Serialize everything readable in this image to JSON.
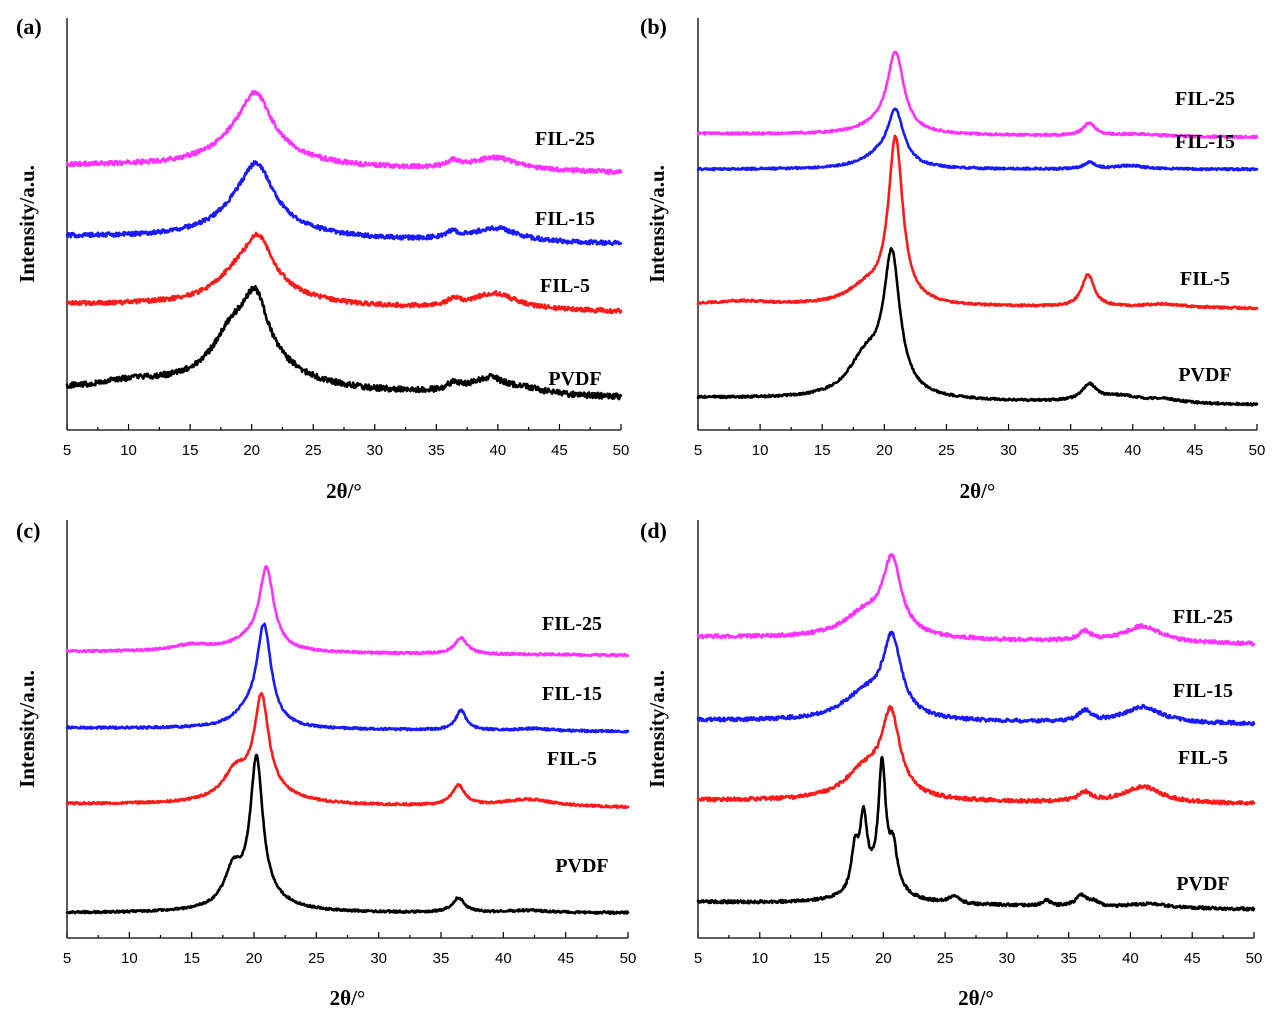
{
  "colors": {
    "FIL-25": "#ff33ff",
    "FIL-15": "#1a1aff",
    "FIL-5": "#ff1a1a",
    "PVDF": "#000000"
  },
  "chart_data": [
    {
      "type": "line",
      "panel": "(a)",
      "xlabel": "2θ/°",
      "ylabel": "Intensity/a.u.",
      "xlim": [
        5,
        50
      ],
      "xticks": [
        "5",
        "10",
        "15",
        "20",
        "25",
        "30",
        "35",
        "40",
        "45",
        "50"
      ],
      "ylim": [
        0,
        100
      ],
      "grid": false,
      "series": [
        {
          "name": "FIL-25",
          "baseline_start": 67,
          "baseline_end": 65,
          "noise": 0.6,
          "peaks": [
            [
              19.4,
              5,
              2.2
            ],
            [
              20.4,
              12,
              1.4
            ],
            [
              20.4,
              5,
              4.0
            ],
            [
              36.4,
              1.8,
              0.6
            ],
            [
              39.8,
              3.5,
              2.2
            ]
          ]
        },
        {
          "name": "FIL-15",
          "baseline_start": 47,
          "baseline_end": 45,
          "noise": 0.6,
          "peaks": [
            [
              19.4,
              5.5,
              2.2
            ],
            [
              20.5,
              12,
              1.4
            ],
            [
              20.5,
              5,
              4.0
            ],
            [
              36.3,
              1.8,
              0.6
            ],
            [
              39.8,
              3.8,
              2.2
            ]
          ]
        },
        {
          "name": "FIL-5",
          "baseline_start": 28,
          "baseline_end": 26,
          "noise": 0.6,
          "peaks": [
            [
              19.0,
              5.5,
              2.0
            ],
            [
              20.6,
              12,
              1.3
            ],
            [
              20.6,
              5,
              4.0
            ],
            [
              36.4,
              1.8,
              0.6
            ],
            [
              39.7,
              4.5,
              2.2
            ]
          ]
        },
        {
          "name": "PVDF",
          "baseline_start": 4,
          "baseline_end": 2,
          "noise": 0.8,
          "peaks": [
            [
              10.3,
              2.0,
              3.5
            ],
            [
              18.3,
              9,
              1.8
            ],
            [
              20.3,
              16,
              1.2
            ],
            [
              20.0,
              9,
              4.0
            ],
            [
              36.4,
              2.0,
              0.7
            ],
            [
              39.3,
              4.5,
              1.8
            ],
            [
              42.5,
              1.3,
              1.5
            ]
          ]
        }
      ],
      "legend_labels": [
        {
          "text": "FIL-25",
          "series": "FIL-25"
        },
        {
          "text": "FIL-15",
          "series": "FIL-15"
        },
        {
          "text": "FIL-5",
          "series": "FIL-5"
        },
        {
          "text": "PVDF",
          "series": "PVDF"
        }
      ]
    },
    {
      "type": "line",
      "panel": "(b)",
      "xlabel": "2θ/°",
      "ylabel": "Intensity/a.u.",
      "xlim": [
        5,
        50
      ],
      "xticks": [
        "5",
        "10",
        "15",
        "20",
        "25",
        "30",
        "35",
        "40",
        "45",
        "50"
      ],
      "ylim": [
        0,
        100
      ],
      "grid": false,
      "series": [
        {
          "name": "FIL-25",
          "baseline_start": 76,
          "baseline_end": 75,
          "noise": 0.3,
          "peaks": [
            [
              19.5,
              2.0,
              2.0
            ],
            [
              20.9,
              22,
              0.8
            ],
            [
              36.5,
              3.5,
              0.6
            ],
            [
              40.5,
              0.6,
              2.0
            ]
          ]
        },
        {
          "name": "FIL-15",
          "baseline_start": 66,
          "baseline_end": 66,
          "noise": 0.3,
          "peaks": [
            [
              19.5,
              3.0,
              1.8
            ],
            [
              20.9,
              15,
              0.8
            ],
            [
              36.5,
              1.8,
              0.5
            ],
            [
              39.7,
              1.0,
              1.5
            ]
          ]
        },
        {
          "name": "FIL-5",
          "baseline_start": 28,
          "baseline_end": 27,
          "noise": 0.3,
          "peaks": [
            [
              8.5,
              1.0,
              3.0
            ],
            [
              18.5,
              4.5,
              1.8
            ],
            [
              20.9,
              46,
              0.7
            ],
            [
              36.4,
              9,
              0.6
            ],
            [
              42.5,
              1.0,
              2.0
            ]
          ]
        },
        {
          "name": "PVDF",
          "baseline_start": 2,
          "baseline_end": 0,
          "noise": 0.3,
          "peaks": [
            [
              18.5,
              11,
              1.7
            ],
            [
              20.6,
              38,
              0.8
            ],
            [
              36.5,
              4.5,
              0.7
            ],
            [
              39.0,
              1.8,
              2.0
            ],
            [
              42.5,
              1.0,
              1.5
            ]
          ]
        }
      ],
      "legend_labels": [
        {
          "text": "FIL-25",
          "series": "FIL-25"
        },
        {
          "text": "FIL-15",
          "series": "FIL-15"
        },
        {
          "text": "FIL-5",
          "series": "FIL-5"
        },
        {
          "text": "PVDF",
          "series": "PVDF"
        }
      ]
    },
    {
      "type": "line",
      "panel": "(c)",
      "xlabel": "2θ/°",
      "ylabel": "Intensity/a.u.",
      "xlim": [
        5,
        50
      ],
      "xticks": [
        "5",
        "10",
        "15",
        "20",
        "25",
        "30",
        "35",
        "40",
        "45",
        "50"
      ],
      "ylim": [
        0,
        100
      ],
      "grid": false,
      "series": [
        {
          "name": "FIL-25",
          "baseline_start": 72,
          "baseline_end": 71,
          "noise": 0.3,
          "peaks": [
            [
              15.0,
              1.8,
              2.0
            ],
            [
              19.5,
              2.5,
              1.8
            ],
            [
              21.0,
              22,
              0.7
            ],
            [
              36.6,
              4.5,
              0.6
            ]
          ]
        },
        {
          "name": "FIL-15",
          "baseline_start": 51,
          "baseline_end": 50,
          "noise": 0.3,
          "peaks": [
            [
              19.5,
              3.5,
              1.5
            ],
            [
              20.8,
              27,
              0.7
            ],
            [
              36.6,
              5.5,
              0.5
            ],
            [
              42.5,
              0.6,
              1.5
            ]
          ]
        },
        {
          "name": "FIL-5",
          "baseline_start": 30,
          "baseline_end": 29,
          "noise": 0.3,
          "peaks": [
            [
              18.5,
              7,
              1.2
            ],
            [
              20.6,
              26,
              0.7
            ],
            [
              20.6,
              3,
              3.0
            ],
            [
              36.4,
              5.5,
              0.6
            ],
            [
              42.0,
              2.0,
              2.5
            ]
          ]
        },
        {
          "name": "PVDF",
          "baseline_start": 0,
          "baseline_end": 0,
          "noise": 0.3,
          "peaks": [
            [
              18.3,
              9,
              0.8
            ],
            [
              20.2,
              38,
              0.6
            ],
            [
              20.2,
              4,
              2.5
            ],
            [
              36.4,
              4,
              0.6
            ],
            [
              42.0,
              0.6,
              2.0
            ]
          ]
        }
      ],
      "legend_labels": [
        {
          "text": "FIL-25",
          "series": "FIL-25"
        },
        {
          "text": "FIL-15",
          "series": "FIL-15"
        },
        {
          "text": "FIL-5",
          "series": "FIL-5"
        },
        {
          "text": "PVDF",
          "series": "PVDF"
        }
      ]
    },
    {
      "type": "line",
      "panel": "(d)",
      "xlabel": "2θ/°",
      "ylabel": "Intensity/a.u.",
      "xlim": [
        5,
        50
      ],
      "xticks": [
        "5",
        "10",
        "15",
        "20",
        "25",
        "30",
        "35",
        "40",
        "45",
        "50"
      ],
      "ylim": [
        0,
        100
      ],
      "grid": false,
      "series": [
        {
          "name": "FIL-25",
          "baseline_start": 76,
          "baseline_end": 74,
          "noise": 0.5,
          "peaks": [
            [
              18.5,
              6.5,
              2.2
            ],
            [
              20.7,
              20,
              0.9
            ],
            [
              36.3,
              2.5,
              0.6
            ],
            [
              41.0,
              4.5,
              1.8
            ]
          ]
        },
        {
          "name": "FIL-15",
          "baseline_start": 53,
          "baseline_end": 52,
          "noise": 0.5,
          "peaks": [
            [
              18.5,
              7,
              2.2
            ],
            [
              20.7,
              21,
              0.9
            ],
            [
              36.3,
              3,
              0.6
            ],
            [
              41.0,
              4.5,
              1.8
            ]
          ]
        },
        {
          "name": "FIL-5",
          "baseline_start": 31,
          "baseline_end": 30,
          "noise": 0.5,
          "peaks": [
            [
              18.5,
              8,
              2.0
            ],
            [
              20.6,
              22,
              0.9
            ],
            [
              36.3,
              2.5,
              0.6
            ],
            [
              41.0,
              4.5,
              1.8
            ]
          ]
        },
        {
          "name": "PVDF",
          "baseline_start": 3,
          "baseline_end": 1,
          "noise": 0.4,
          "peaks": [
            [
              17.7,
              11,
              0.35
            ],
            [
              18.4,
              19,
              0.35
            ],
            [
              19.9,
              33,
              0.35
            ],
            [
              20.8,
              11,
              0.4
            ],
            [
              19.5,
              5,
              2.0
            ],
            [
              25.7,
              2,
              0.5
            ],
            [
              33.2,
              1.5,
              0.4
            ],
            [
              36.0,
              3,
              0.5
            ],
            [
              37.0,
              1.3,
              0.5
            ],
            [
              41.5,
              1.0,
              2.0
            ]
          ]
        }
      ],
      "legend_labels": [
        {
          "text": "FIL-25",
          "series": "FIL-25"
        },
        {
          "text": "FIL-15",
          "series": "FIL-15"
        },
        {
          "text": "FIL-5",
          "series": "FIL-5"
        },
        {
          "text": "PVDF",
          "series": "PVDF"
        }
      ]
    }
  ]
}
